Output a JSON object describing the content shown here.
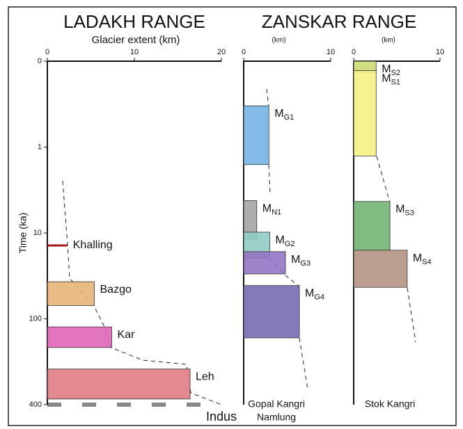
{
  "chart_data": [
    {
      "type": "bar",
      "title": "LADAKH RANGE",
      "xlabel": "Glacier extent (km)",
      "ylabel": "Time (ka)",
      "xlim": [
        0,
        20
      ],
      "xticks": [
        0,
        10,
        20
      ],
      "ylim": [
        0,
        400
      ],
      "yticks": [
        0,
        1,
        10,
        100,
        400
      ],
      "footer": [
        "Indus"
      ],
      "series": [
        {
          "name": "Khalling",
          "color": "#a01818",
          "start": 14,
          "extent": 2.3
        },
        {
          "name": "Bazgo",
          "color": "#e8b478",
          "start": 37,
          "end": 70,
          "extent": 5.4
        },
        {
          "name": "Kar",
          "color": "#e066b8",
          "start": 114,
          "end": 159,
          "extent": 7.4
        },
        {
          "name": "Leh",
          "color": "#e07c84",
          "start": 225,
          "end": 365,
          "extent": 16.4
        }
      ]
    },
    {
      "type": "bar",
      "title": "ZANSKAR RANGE",
      "xlabel": "(km)",
      "xlim": [
        0,
        10
      ],
      "xticks": [
        0,
        10
      ],
      "footer": [
        "Gopal Kangri",
        "Namlung"
      ],
      "series": [
        {
          "name": "M",
          "sub": "G1",
          "color": "#74b4e4",
          "start": 0.52,
          "end": 1.6,
          "extent": 2.9
        },
        {
          "name": "M",
          "sub": "N1",
          "color": "#a4a4a4",
          "start": 4.2,
          "end": 11.8,
          "extent": 1.5
        },
        {
          "name": "M",
          "sub": "G2",
          "color": "#90ccc4",
          "start": 9.8,
          "end": 19.6,
          "extent": 3.0
        },
        {
          "name": "M",
          "sub": "G3",
          "color": "#9474c4",
          "start": 16.5,
          "end": 30,
          "extent": 4.8
        },
        {
          "name": "M",
          "sub": "G4",
          "color": "#746cb4",
          "start": 41,
          "end": 136,
          "extent": 6.4
        }
      ]
    },
    {
      "type": "bar",
      "xlabel": "(km)",
      "xlim": [
        0,
        10
      ],
      "xticks": [
        0,
        10
      ],
      "footer": [
        "Stok Kangri"
      ],
      "series": [
        {
          "name": "M",
          "sub": "S2",
          "color": "#ccdc74",
          "start": 0,
          "end": 0.13,
          "extent": 2.6
        },
        {
          "name": "M",
          "sub": "S1",
          "color": "#f4f284",
          "start": 0.11,
          "end": 1.27,
          "extent": 2.6
        },
        {
          "name": "M",
          "sub": "S3",
          "color": "#74b474",
          "start": 4.3,
          "end": 15.9,
          "extent": 4.2
        },
        {
          "name": "M",
          "sub": "S4",
          "color": "#b49484",
          "start": 15.9,
          "end": 43,
          "extent": 6.2
        }
      ]
    }
  ]
}
